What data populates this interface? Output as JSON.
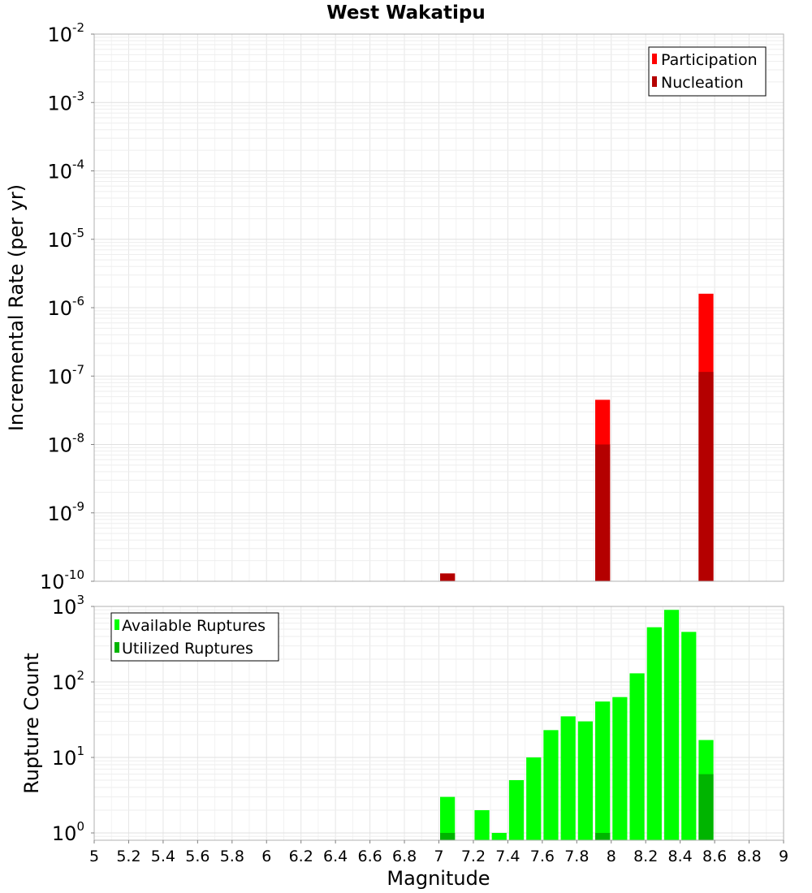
{
  "chart_data": [
    {
      "type": "bar",
      "title": "West Wakatipu",
      "ylabel": "Incremental Rate (per yr)",
      "xlabel": "",
      "xlim": [
        5,
        9
      ],
      "ylim": [
        1e-10,
        0.01
      ],
      "yscale": "log",
      "grid": true,
      "legend_position": "top-right",
      "bin_width": 0.1,
      "series": [
        {
          "name": "Participation",
          "color": "#ff0000",
          "x": [
            7.05,
            7.95,
            8.55
          ],
          "values": [
            1.3e-10,
            4.5e-08,
            1.6e-06
          ]
        },
        {
          "name": "Nucleation",
          "color": "#b40000",
          "x": [
            7.05,
            7.95,
            8.55
          ],
          "values": [
            1.3e-10,
            1e-08,
            1.15e-07
          ]
        }
      ],
      "yticks": [
        {
          "base": "10",
          "exp": "-10"
        },
        {
          "base": "10",
          "exp": "-9"
        },
        {
          "base": "10",
          "exp": "-8"
        },
        {
          "base": "10",
          "exp": "-7"
        },
        {
          "base": "10",
          "exp": "-6"
        },
        {
          "base": "10",
          "exp": "-5"
        },
        {
          "base": "10",
          "exp": "-4"
        },
        {
          "base": "10",
          "exp": "-3"
        },
        {
          "base": "10",
          "exp": "-2"
        }
      ]
    },
    {
      "type": "bar",
      "title": "",
      "ylabel": "Rupture Count",
      "xlabel": "Magnitude",
      "xlim": [
        5,
        9
      ],
      "ylim": [
        0.8,
        1000
      ],
      "yscale": "log",
      "grid": true,
      "legend_position": "top-left",
      "bin_width": 0.1,
      "series": [
        {
          "name": "Available Ruptures",
          "color": "#00ff00",
          "x": [
            7.05,
            7.25,
            7.35,
            7.45,
            7.55,
            7.65,
            7.75,
            7.85,
            7.95,
            8.05,
            8.15,
            8.25,
            8.35,
            8.45,
            8.55
          ],
          "values": [
            3,
            2,
            1,
            5,
            10,
            23,
            35,
            30,
            55,
            63,
            130,
            530,
            900,
            460,
            17
          ]
        },
        {
          "name": "Utilized Ruptures",
          "color": "#00b400",
          "x": [
            7.05,
            7.95,
            8.55
          ],
          "values": [
            1,
            1,
            6
          ]
        }
      ],
      "yticks": [
        {
          "base": "10",
          "exp": "0"
        },
        {
          "base": "10",
          "exp": "1"
        },
        {
          "base": "10",
          "exp": "2"
        },
        {
          "base": "10",
          "exp": "3"
        }
      ],
      "xticks": [
        "5",
        "5.2",
        "5.4",
        "5.6",
        "5.8",
        "6",
        "6.2",
        "6.4",
        "6.6",
        "6.8",
        "7",
        "7.2",
        "7.4",
        "7.6",
        "7.8",
        "8",
        "8.2",
        "8.4",
        "8.6",
        "8.8",
        "9"
      ]
    }
  ]
}
